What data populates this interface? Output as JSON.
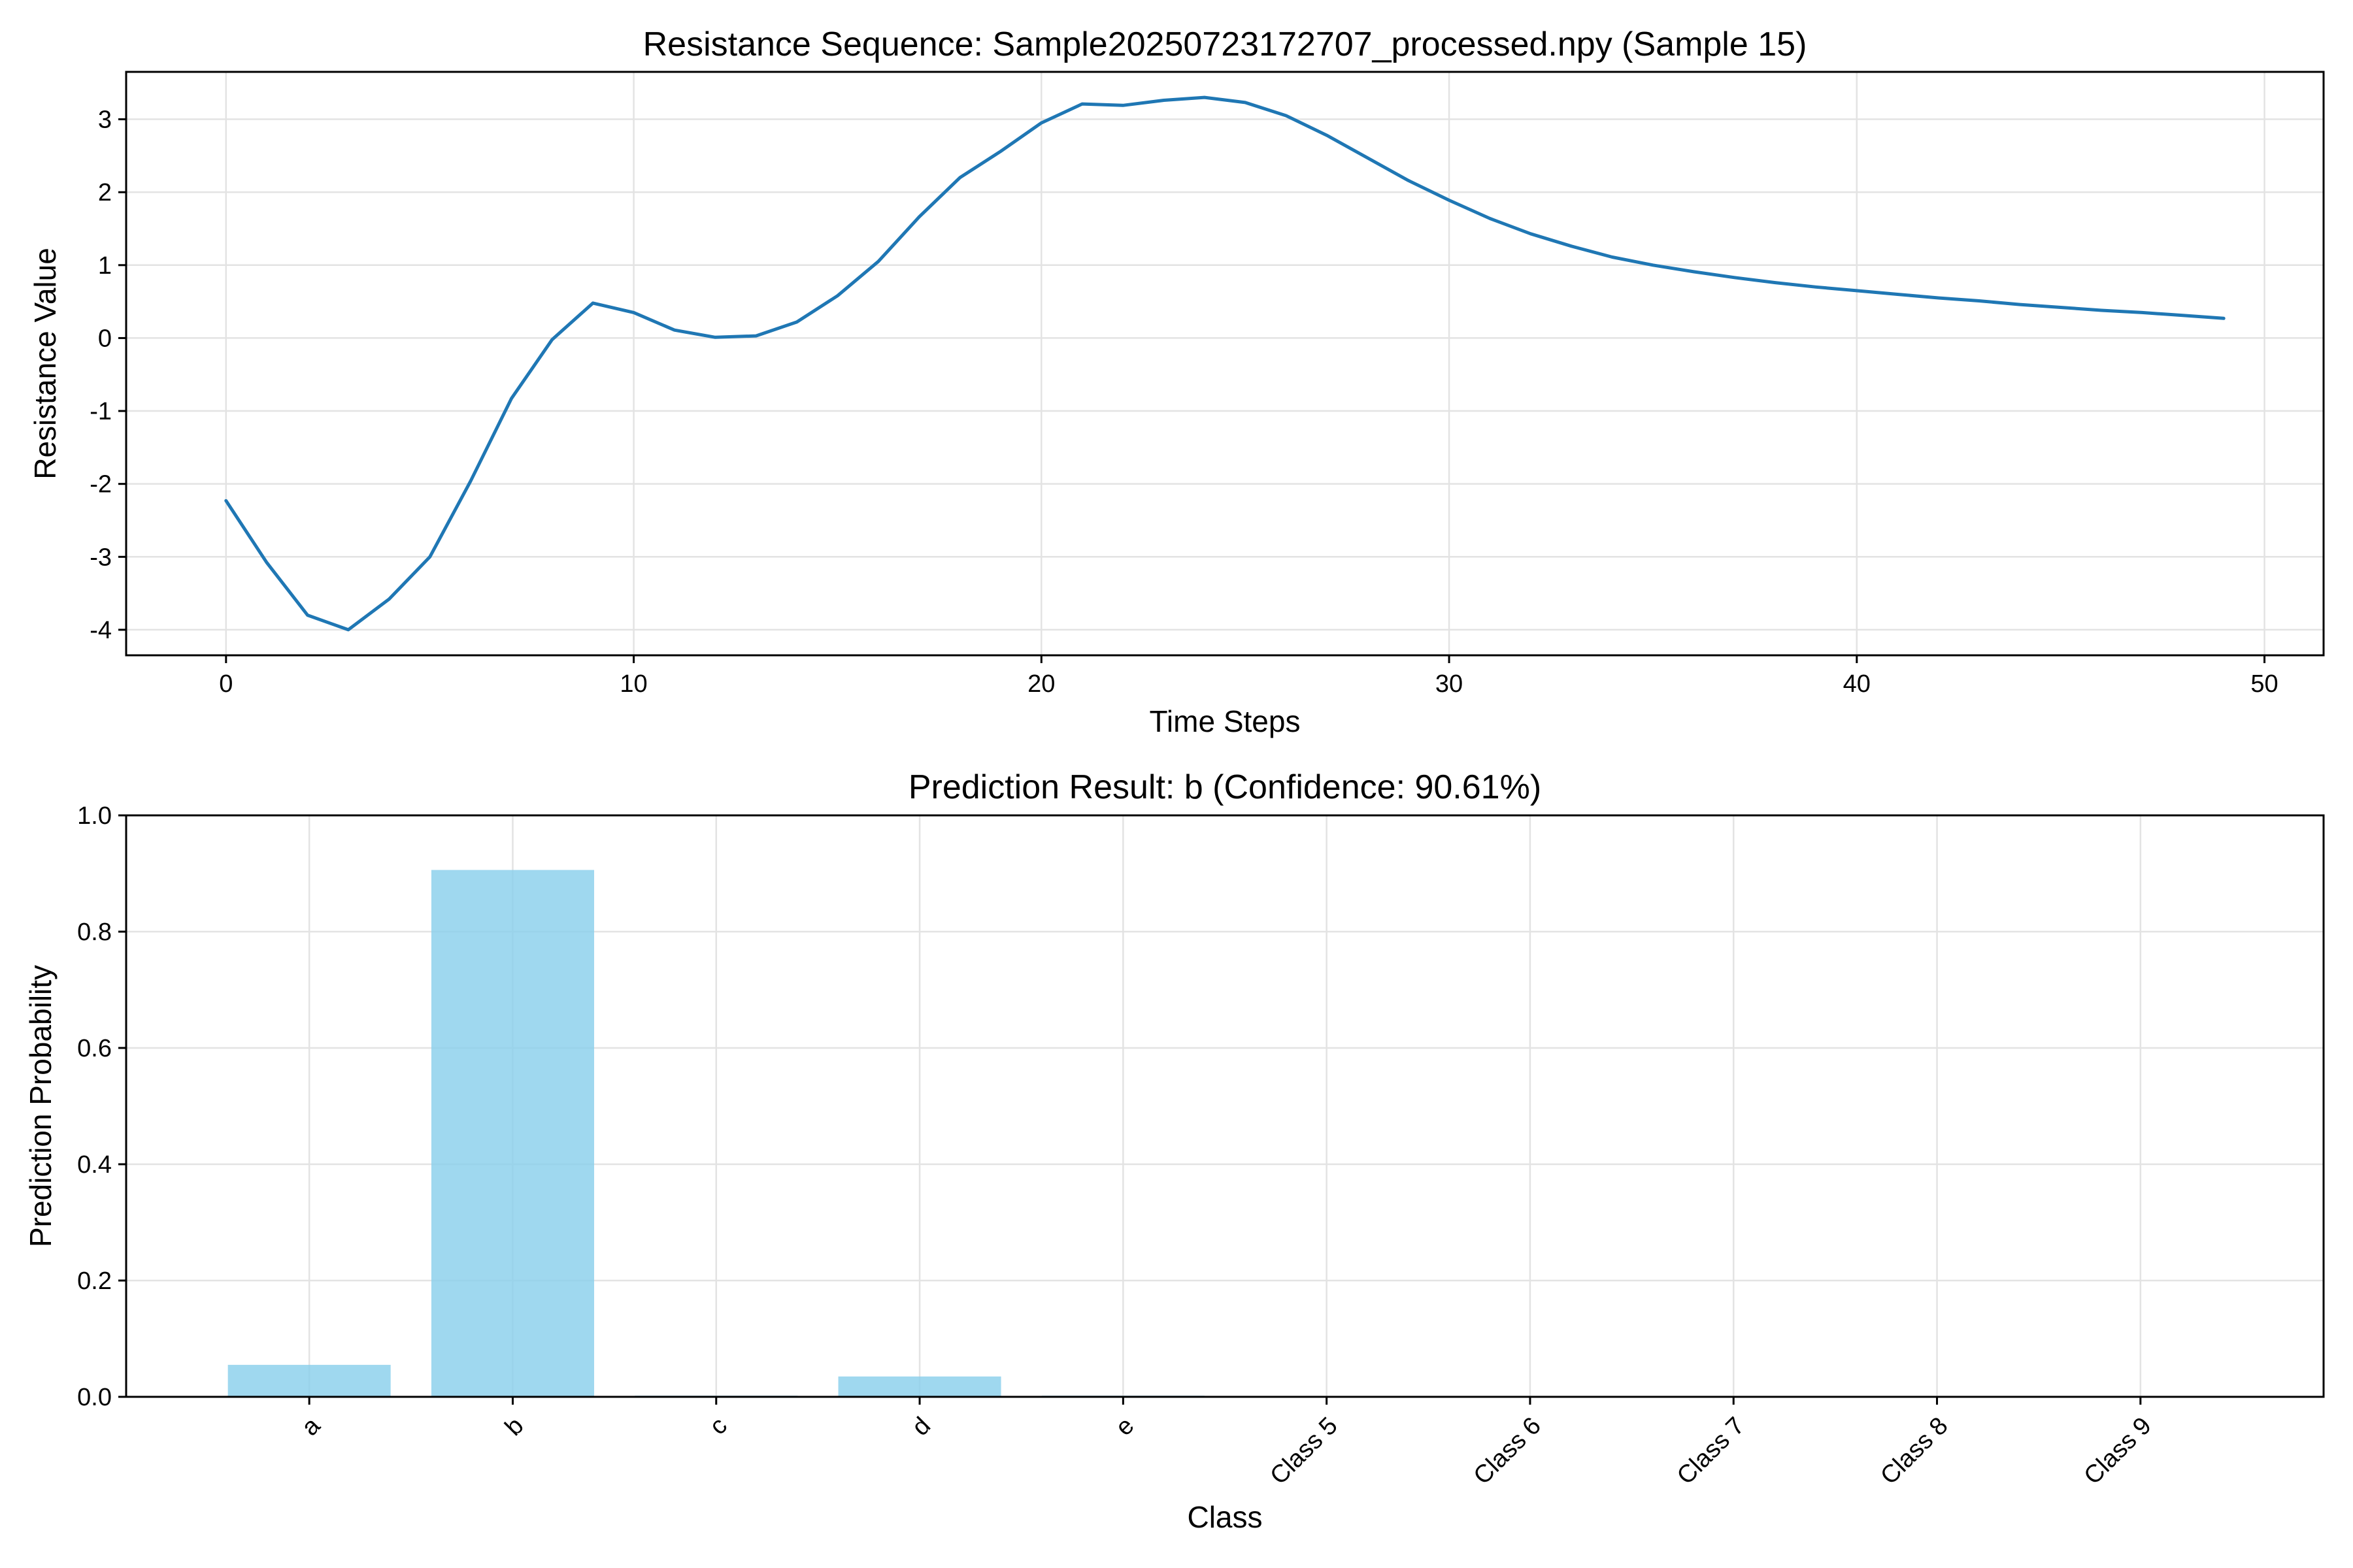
{
  "chart_data": [
    {
      "type": "line",
      "title": "Resistance Sequence: Sample20250723172707_processed.npy (Sample 15)",
      "xlabel": "Time Steps",
      "ylabel": "Resistance Value",
      "xlim": [
        -2.45,
        51.45
      ],
      "ylim": [
        -4.35,
        3.65
      ],
      "xticks": [
        0,
        10,
        20,
        30,
        40,
        50
      ],
      "yticks": [
        -4,
        -3,
        -2,
        -1,
        0,
        1,
        2,
        3
      ],
      "grid": true,
      "color": "#1f77b4",
      "series": [
        {
          "x": [
            0,
            1,
            2,
            3,
            4,
            5,
            6,
            7,
            8,
            9,
            10,
            11,
            12,
            13,
            14,
            15,
            16,
            17,
            18,
            19,
            20,
            21,
            22,
            23,
            24,
            25,
            26,
            27,
            28,
            29,
            30,
            31,
            32,
            33,
            34,
            35,
            36,
            37,
            38,
            39,
            40,
            41,
            42,
            43,
            44,
            45,
            46,
            47,
            48,
            49
          ],
          "y": [
            -2.23,
            -3.08,
            -3.8,
            -4.0,
            -3.58,
            -3.0,
            -1.96,
            -0.83,
            -0.02,
            0.48,
            0.35,
            0.11,
            0.01,
            0.03,
            0.22,
            0.58,
            1.05,
            1.66,
            2.2,
            2.56,
            2.95,
            3.21,
            3.19,
            3.26,
            3.3,
            3.23,
            3.05,
            2.78,
            2.47,
            2.16,
            1.89,
            1.64,
            1.43,
            1.26,
            1.11,
            1.0,
            0.91,
            0.83,
            0.76,
            0.7,
            0.65,
            0.6,
            0.55,
            0.51,
            0.46,
            0.42,
            0.38,
            0.35,
            0.31,
            0.27
          ]
        }
      ]
    },
    {
      "type": "bar",
      "title": "Prediction Result: b (Confidence: 90.61%)",
      "xlabel": "Class",
      "ylabel": "Prediction Probability",
      "ylim": [
        0,
        1.0
      ],
      "yticks": [
        0.0,
        0.2,
        0.4,
        0.6,
        0.8,
        1.0
      ],
      "grid": true,
      "color": "#87ceeb",
      "categories": [
        "a",
        "b",
        "c",
        "d",
        "e",
        "Class 5",
        "Class 6",
        "Class 7",
        "Class 8",
        "Class 9"
      ],
      "values": [
        0.055,
        0.9061,
        0.002,
        0.035,
        0.002,
        0,
        0,
        0,
        0,
        0
      ]
    }
  ]
}
